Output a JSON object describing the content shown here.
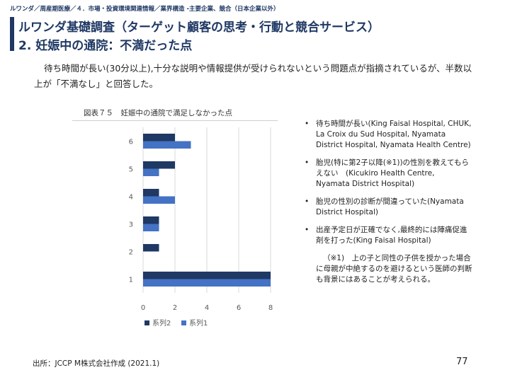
{
  "header": {
    "breadcrumb": "ルワンダ／周産期医療／４．市場・投資環境関連情報／業界構造 -主要企業、競合（日本企業以外）",
    "title_line1": "ルワンダ基礎調査（ターゲット顧客の思考・行動と競合サービス）",
    "title_line2": "2. 妊娠中の通院：不満だった点",
    "accent_color": "#1f3864"
  },
  "intro": {
    "text": "待ち時間が長い(30分以上),十分な説明や情報提供が受けられないという問題点が指摘されているが、半数以上が「不満なし」と回答した。"
  },
  "figure": {
    "caption": "図表７５　妊娠中の通院で満足しなかった点"
  },
  "chart_data": {
    "type": "bar",
    "orientation": "horizontal",
    "categories": [
      "1",
      "2",
      "3",
      "4",
      "5",
      "6"
    ],
    "series": [
      {
        "name": "系列1",
        "values": [
          8,
          0,
          1,
          2,
          1,
          3
        ],
        "color": "#4472c4"
      },
      {
        "name": "系列2",
        "values": [
          8,
          1,
          1,
          1,
          2,
          2
        ],
        "color": "#1f3864"
      }
    ],
    "xlim": [
      0,
      8
    ],
    "xticks": [
      "0",
      "2",
      "4",
      "6",
      "8"
    ],
    "grid": true,
    "legend": "bottom-left"
  },
  "bullets": {
    "items": [
      "待ち時間が長い(King Faisal Hospital, CHUK, La Croix du Sud Hospital, Nyamata District Hospital, Nyamata Health Centre)",
      "胎児(特に第2子以降(※1))の性別を教えてもらえない　(Kicukiro Health Centre,　Nyamata District Hospital)",
      "胎児の性別の診断が間違っていた(Nyamata District Hospital)",
      "出産予定日が正確でなく,最終的には陣痛促進剤を打った(King Faisal Hospital)"
    ],
    "bullet_symbol": "•",
    "note": "（※1)　上の子と同性の子供を授かった場合に母親が中絶するのを避けるという医師の判断も背景にはあることが考えられる。"
  },
  "footer": {
    "source": "出所：JCCP M株式会社作成 (2021.1)",
    "page": "77"
  }
}
